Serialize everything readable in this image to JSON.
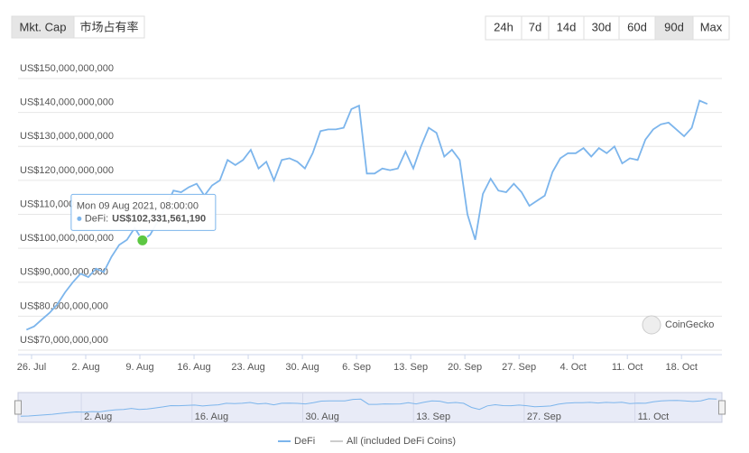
{
  "tabs": {
    "items": [
      "Mkt. Cap",
      "市场占有率"
    ],
    "selected": 0
  },
  "ranges": {
    "items": [
      "24h",
      "7d",
      "14d",
      "30d",
      "60d",
      "90d",
      "Max"
    ],
    "selected": 5
  },
  "credit": "CoinGecko",
  "chart_data": {
    "type": "line",
    "x": [
      "2021-07-25T08:00",
      "2021-07-26T08:00",
      "2021-07-27T08:00",
      "2021-07-28T08:00",
      "2021-07-29T08:00",
      "2021-07-30T08:00",
      "2021-07-31T08:00",
      "2021-08-01T08:00",
      "2021-08-02T08:00",
      "2021-08-03T08:00",
      "2021-08-04T08:00",
      "2021-08-05T08:00",
      "2021-08-06T08:00",
      "2021-08-07T08:00",
      "2021-08-08T08:00",
      "2021-08-09T08:00",
      "2021-08-10T08:00",
      "2021-08-11T08:00",
      "2021-08-12T08:00",
      "2021-08-13T08:00",
      "2021-08-14T08:00",
      "2021-08-15T08:00",
      "2021-08-16T08:00",
      "2021-08-17T08:00",
      "2021-08-18T08:00",
      "2021-08-19T08:00",
      "2021-08-20T08:00",
      "2021-08-21T08:00",
      "2021-08-22T08:00",
      "2021-08-23T08:00",
      "2021-08-24T08:00",
      "2021-08-25T08:00",
      "2021-08-26T08:00",
      "2021-08-27T08:00",
      "2021-08-28T08:00",
      "2021-08-29T08:00",
      "2021-08-30T08:00",
      "2021-08-31T08:00",
      "2021-09-01T08:00",
      "2021-09-02T08:00",
      "2021-09-03T08:00",
      "2021-09-04T08:00",
      "2021-09-05T08:00",
      "2021-09-06T08:00",
      "2021-09-07T08:00",
      "2021-09-08T08:00",
      "2021-09-09T08:00",
      "2021-09-10T08:00",
      "2021-09-11T08:00",
      "2021-09-12T08:00",
      "2021-09-13T08:00",
      "2021-09-14T08:00",
      "2021-09-15T08:00",
      "2021-09-16T08:00",
      "2021-09-17T08:00",
      "2021-09-18T08:00",
      "2021-09-19T08:00",
      "2021-09-20T08:00",
      "2021-09-21T08:00",
      "2021-09-22T08:00",
      "2021-09-23T08:00",
      "2021-09-24T08:00",
      "2021-09-25T08:00",
      "2021-09-26T08:00",
      "2021-09-27T08:00",
      "2021-09-28T08:00",
      "2021-09-29T08:00",
      "2021-09-30T08:00",
      "2021-10-01T08:00",
      "2021-10-02T08:00",
      "2021-10-03T08:00",
      "2021-10-04T08:00",
      "2021-10-05T08:00",
      "2021-10-06T08:00",
      "2021-10-07T08:00",
      "2021-10-08T08:00",
      "2021-10-09T08:00",
      "2021-10-10T08:00",
      "2021-10-11T08:00",
      "2021-10-12T08:00",
      "2021-10-13T08:00",
      "2021-10-14T08:00",
      "2021-10-15T08:00",
      "2021-10-16T08:00",
      "2021-10-17T08:00",
      "2021-10-18T08:00",
      "2021-10-19T08:00",
      "2021-10-20T08:00",
      "2021-10-21T08:00"
    ],
    "series": [
      {
        "name": "DeFi",
        "color": "#7cb5ec",
        "values": [
          76000000000,
          77000000000,
          79000000000,
          81000000000,
          83500000000,
          87000000000,
          90000000000,
          92500000000,
          91500000000,
          94000000000,
          93000000000,
          97500000000,
          101000000000,
          102500000000,
          106000000000,
          102331561190,
          104000000000,
          108000000000,
          112000000000,
          117000000000,
          116500000000,
          118000000000,
          119000000000,
          115500000000,
          118500000000,
          120000000000,
          126000000000,
          124500000000,
          126000000000,
          129000000000,
          123500000000,
          125500000000,
          120000000000,
          126000000000,
          126500000000,
          125500000000,
          123500000000,
          128000000000,
          134500000000,
          135000000000,
          135000000000,
          135500000000,
          141000000000,
          142000000000,
          122000000000,
          122000000000,
          123500000000,
          123000000000,
          123500000000,
          128500000000,
          123500000000,
          130000000000,
          135500000000,
          134000000000,
          127000000000,
          129000000000,
          126000000000,
          110000000000,
          102500000000,
          116000000000,
          120500000000,
          117000000000,
          116500000000,
          119000000000,
          116500000000,
          112500000000,
          114000000000,
          115500000000,
          122500000000,
          126500000000,
          128000000000,
          128000000000,
          129500000000,
          127000000000,
          129500000000,
          128000000000,
          130000000000,
          125000000000,
          126500000000,
          126000000000,
          132000000000,
          135000000000,
          136500000000,
          137000000000,
          135000000000,
          133000000000,
          135500000000,
          143500000000,
          142500000000
        ]
      }
    ],
    "hidden_series": [
      {
        "name": "All (included DeFi Coins)",
        "color": "#cccccc"
      }
    ],
    "xlim": [
      "2021-07-25T00:00",
      "2021-10-22T00:00"
    ],
    "xticks": [
      {
        "value": "2021-07-26T00:00",
        "label": "26. Jul"
      },
      {
        "value": "2021-08-02T00:00",
        "label": "2. Aug"
      },
      {
        "value": "2021-08-09T00:00",
        "label": "9. Aug"
      },
      {
        "value": "2021-08-16T00:00",
        "label": "16. Aug"
      },
      {
        "value": "2021-08-23T00:00",
        "label": "23. Aug"
      },
      {
        "value": "2021-08-30T00:00",
        "label": "30. Aug"
      },
      {
        "value": "2021-09-06T00:00",
        "label": "6. Sep"
      },
      {
        "value": "2021-09-13T00:00",
        "label": "13. Sep"
      },
      {
        "value": "2021-09-20T00:00",
        "label": "20. Sep"
      },
      {
        "value": "2021-09-27T00:00",
        "label": "27. Sep"
      },
      {
        "value": "2021-10-04T00:00",
        "label": "4. Oct"
      },
      {
        "value": "2021-10-11T00:00",
        "label": "11. Oct"
      },
      {
        "value": "2021-10-18T00:00",
        "label": "18. Oct"
      }
    ],
    "navigator_xticks": [
      {
        "value": "2021-08-02T00:00",
        "label": "2. Aug"
      },
      {
        "value": "2021-08-16T00:00",
        "label": "16. Aug"
      },
      {
        "value": "2021-08-30T00:00",
        "label": "30. Aug"
      },
      {
        "value": "2021-09-13T00:00",
        "label": "13. Sep"
      },
      {
        "value": "2021-09-27T00:00",
        "label": "27. Sep"
      },
      {
        "value": "2021-10-11T00:00",
        "label": "11. Oct"
      }
    ],
    "ylim": [
      70000000000,
      150000000000
    ],
    "yticks": [
      {
        "value": 70000000000,
        "label": "US$70,000,000,000"
      },
      {
        "value": 80000000000,
        "label": "US$80,000,000,000"
      },
      {
        "value": 90000000000,
        "label": "US$90,000,000,000"
      },
      {
        "value": 100000000000,
        "label": "US$100,000,000,000"
      },
      {
        "value": 110000000000,
        "label": "US$110,000,000,000"
      },
      {
        "value": 120000000000,
        "label": "US$120,000,000,000"
      },
      {
        "value": 130000000000,
        "label": "US$130,000,000,000"
      },
      {
        "value": 140000000000,
        "label": "US$140,000,000,000"
      },
      {
        "value": 150000000000,
        "label": "US$150,000,000,000"
      }
    ],
    "grid": true,
    "tooltip": {
      "index": 15,
      "title": "Mon 09 Aug 2021, 08:00:00",
      "series_label": "DeFi:",
      "value_label": "US$102,331,561,190",
      "marker_color": "#5cc742"
    }
  }
}
